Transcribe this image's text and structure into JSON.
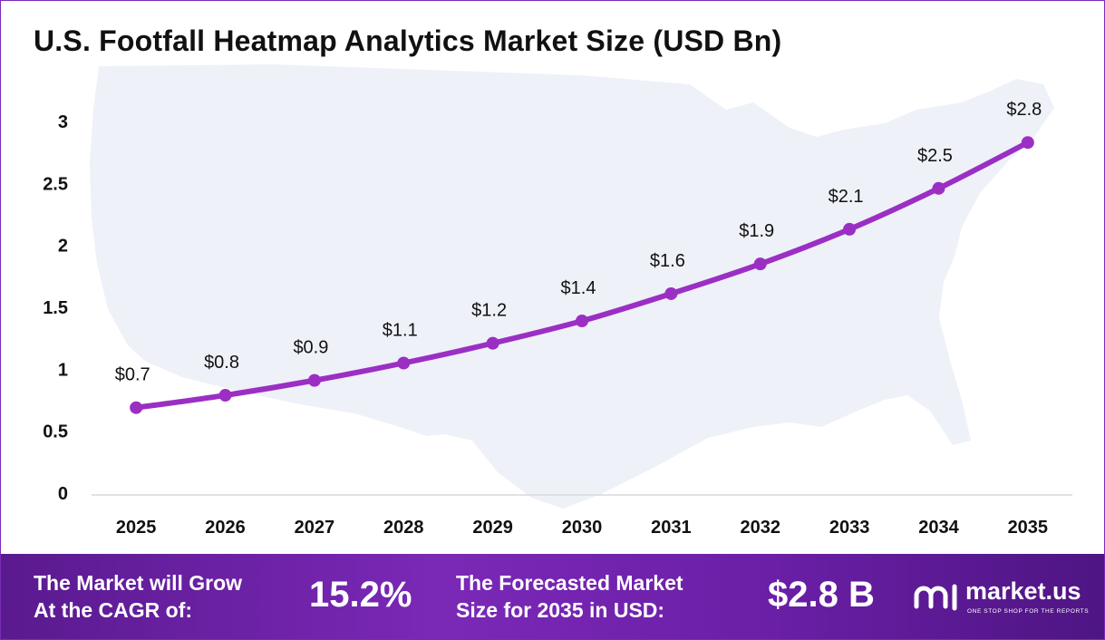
{
  "title": "U.S. Footfall Heatmap Analytics Market Size (USD Bn)",
  "colors": {
    "line": "#9B2FC4",
    "marker": "#9B2FC4",
    "footer_start": "#5a1a8f",
    "footer_end": "#4e1583",
    "background_map": "#EEF1F8"
  },
  "chart_data": {
    "type": "line",
    "title": "U.S. Footfall Heatmap Analytics Market Size (USD Bn)",
    "categories": [
      "2025",
      "2026",
      "2027",
      "2028",
      "2029",
      "2030",
      "2031",
      "2032",
      "2033",
      "2034",
      "2035"
    ],
    "values": [
      0.69,
      0.79,
      0.91,
      1.05,
      1.21,
      1.39,
      1.61,
      1.85,
      2.13,
      2.46,
      2.83
    ],
    "data_labels": [
      "$0.7",
      "$0.8",
      "$0.9",
      "$1.1",
      "$1.2",
      "$1.4",
      "$1.6",
      "$1.9",
      "$2.1",
      "$2.5",
      "$2.8"
    ],
    "y_ticks": [
      "0",
      "0.5",
      "1",
      "1.5",
      "2",
      "2.5",
      "3"
    ],
    "y_tick_values": [
      0,
      0.5,
      1,
      1.5,
      2,
      2.5,
      3
    ],
    "ylim": [
      0,
      3
    ],
    "xlabel": "",
    "ylabel": "",
    "grid": false,
    "legend": "none"
  },
  "footer": {
    "cagr_label_line1": "The Market will Grow",
    "cagr_label_line2": "At the CAGR of:",
    "cagr_value": "15.2%",
    "forecast_label_line1": "The Forecasted Market",
    "forecast_label_line2": "Size for 2035 in USD:",
    "forecast_value": "$2.8 B",
    "logo_name": "market.us",
    "logo_tagline": "ONE STOP SHOP FOR THE REPORTS",
    "logo_icon": "market-us-logo-icon"
  }
}
